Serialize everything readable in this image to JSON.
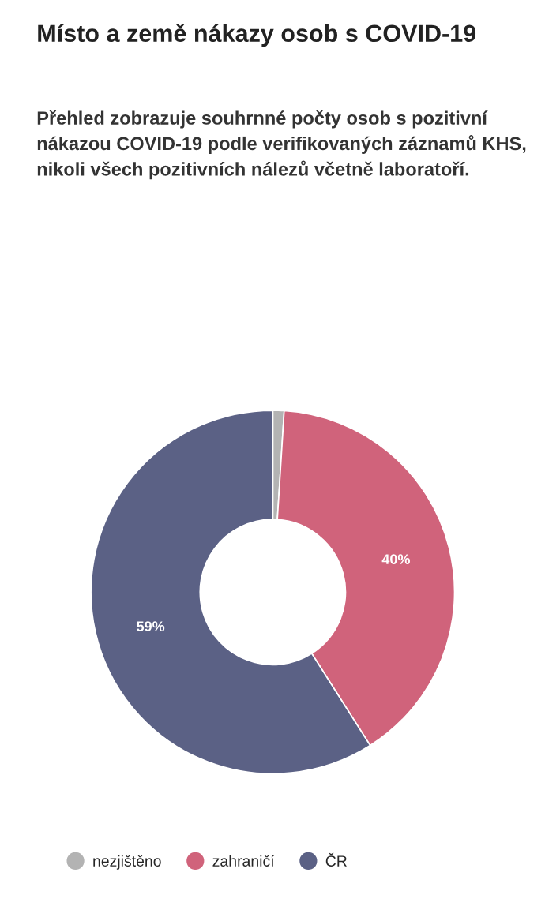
{
  "chart_data": {
    "type": "donut",
    "title": "Místo a země nákazy osob s COVID-19",
    "subtitle": "Přehled zobrazuje souhrnné počty osob s pozitivní nákazou COVID-19 podle verifikovaných záznamů KHS, nikoli všech pozitivních nálezů včetně laboratoří.",
    "categories": [
      "nezjištěno",
      "zahraničí",
      "ČR"
    ],
    "values": [
      1,
      40,
      59
    ],
    "colors": [
      "#b3b3b3",
      "#d0637b",
      "#5b6185"
    ],
    "value_labels": [
      null,
      "40%",
      "59%"
    ],
    "legend": "bottom left"
  }
}
